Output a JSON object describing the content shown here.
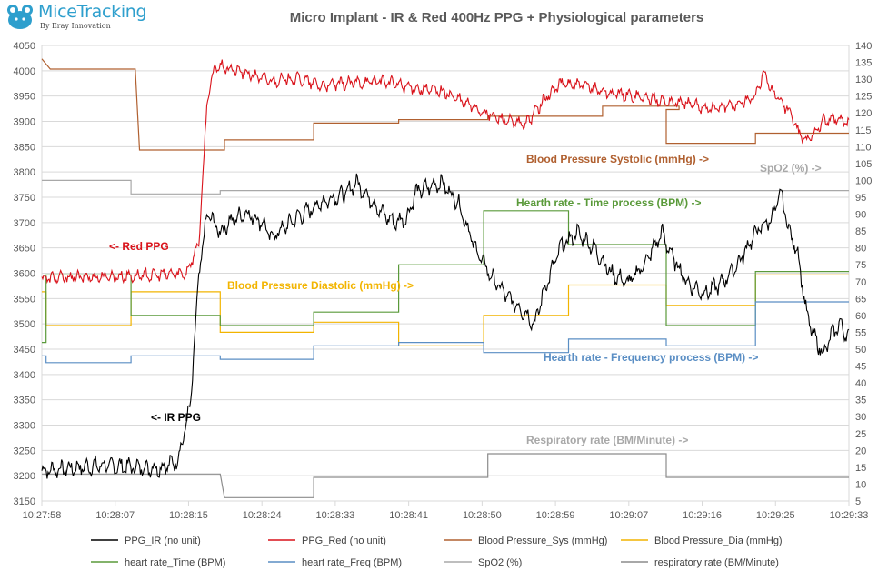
{
  "logo": {
    "name": "MiceTracking",
    "tagline": "By Eray Innovation"
  },
  "colors": {
    "ppg_ir": "#000000",
    "ppg_red": "#d9121a",
    "bp_sys": "#b06030",
    "bp_dia": "#f2b400",
    "hr_time": "#5a9a3a",
    "hr_freq": "#5a8ec4",
    "spo2": "#a8a8a8",
    "resp": "#8c8c8c",
    "grid": "#d9d9d9",
    "axis_text": "#595959"
  },
  "chart_data": {
    "type": "line",
    "title": "Micro Implant - IR & Red 400Hz PPG + Physiological parameters",
    "x_ticks": [
      "10:27:58",
      "10:28:07",
      "10:28:15",
      "10:28:24",
      "10:28:33",
      "10:28:41",
      "10:28:50",
      "10:28:59",
      "10:29:07",
      "10:29:16",
      "10:29:25",
      "10:29:33"
    ],
    "x_range_seconds": [
      0,
      95
    ],
    "y_left": {
      "range": [
        3150,
        4050
      ],
      "ticks": [
        3150,
        3200,
        3250,
        3300,
        3350,
        3400,
        3450,
        3500,
        3550,
        3600,
        3650,
        3700,
        3750,
        3800,
        3850,
        3900,
        3950,
        4000,
        4050
      ]
    },
    "y_right": {
      "range": [
        5,
        140
      ],
      "ticks": [
        5,
        10,
        15,
        20,
        25,
        30,
        35,
        40,
        45,
        50,
        55,
        60,
        65,
        70,
        75,
        80,
        85,
        90,
        95,
        100,
        105,
        110,
        115,
        120,
        125,
        130,
        135,
        140
      ]
    },
    "series": [
      {
        "name": "PPG_IR (no unit)",
        "axis": "left",
        "kind": "signal",
        "points": [
          [
            0,
            3210
          ],
          [
            7,
            3220
          ],
          [
            14,
            3215
          ],
          [
            16,
            3230
          ],
          [
            17.5,
            3340
          ],
          [
            18.5,
            3600
          ],
          [
            19.5,
            3720
          ],
          [
            21,
            3680
          ],
          [
            22,
            3700
          ],
          [
            24,
            3720
          ],
          [
            26,
            3700
          ],
          [
            27,
            3670
          ],
          [
            30,
            3710
          ],
          [
            33,
            3740
          ],
          [
            36,
            3760
          ],
          [
            37,
            3780
          ],
          [
            39,
            3740
          ],
          [
            40,
            3720
          ],
          [
            41.5,
            3700
          ],
          [
            43,
            3710
          ],
          [
            44,
            3760
          ],
          [
            47,
            3780
          ],
          [
            49,
            3740
          ],
          [
            51,
            3650
          ],
          [
            53,
            3590
          ],
          [
            55,
            3550
          ],
          [
            57,
            3520
          ],
          [
            58,
            3500
          ],
          [
            59,
            3560
          ],
          [
            61,
            3650
          ],
          [
            63,
            3680
          ],
          [
            65,
            3650
          ],
          [
            67,
            3600
          ],
          [
            69,
            3580
          ],
          [
            71,
            3620
          ],
          [
            73,
            3680
          ],
          [
            74,
            3640
          ],
          [
            76,
            3580
          ],
          [
            78,
            3560
          ],
          [
            80,
            3580
          ],
          [
            82,
            3620
          ],
          [
            84,
            3680
          ],
          [
            86,
            3710
          ],
          [
            87,
            3760
          ],
          [
            88,
            3680
          ],
          [
            89,
            3640
          ],
          [
            90,
            3520
          ],
          [
            91,
            3470
          ],
          [
            92,
            3440
          ],
          [
            93,
            3480
          ],
          [
            94,
            3500
          ],
          [
            95,
            3470
          ]
        ],
        "noise": 14
      },
      {
        "name": "PPG_Red (no unit)",
        "axis": "left",
        "kind": "signal",
        "points": [
          [
            0,
            3590
          ],
          [
            12,
            3595
          ],
          [
            17,
            3600
          ],
          [
            18.5,
            3660
          ],
          [
            19.5,
            3950
          ],
          [
            20.5,
            4010
          ],
          [
            23,
            4000
          ],
          [
            27,
            3980
          ],
          [
            30,
            3985
          ],
          [
            33,
            3970
          ],
          [
            36,
            3975
          ],
          [
            40,
            3980
          ],
          [
            44,
            3965
          ],
          [
            47,
            3960
          ],
          [
            50,
            3935
          ],
          [
            53,
            3910
          ],
          [
            56,
            3895
          ],
          [
            57,
            3895
          ],
          [
            59,
            3940
          ],
          [
            61,
            3975
          ],
          [
            64,
            3970
          ],
          [
            67,
            3955
          ],
          [
            70,
            3950
          ],
          [
            73,
            3940
          ],
          [
            76,
            3935
          ],
          [
            79,
            3925
          ],
          [
            82,
            3935
          ],
          [
            84,
            3950
          ],
          [
            85,
            3995
          ],
          [
            86,
            3960
          ],
          [
            88,
            3920
          ],
          [
            89,
            3880
          ],
          [
            90,
            3860
          ],
          [
            92,
            3900
          ],
          [
            94,
            3905
          ],
          [
            95,
            3895
          ]
        ],
        "noise": 10
      },
      {
        "name": "Blood Pressure_Sys (mmHg)",
        "axis": "right",
        "kind": "step",
        "points": [
          [
            0,
            136
          ],
          [
            1,
            133
          ],
          [
            11,
            133
          ],
          [
            11.5,
            109
          ],
          [
            21.5,
            109
          ],
          [
            21.5,
            112
          ],
          [
            32,
            112
          ],
          [
            32,
            117
          ],
          [
            42,
            117
          ],
          [
            42,
            118
          ],
          [
            52.5,
            118
          ],
          [
            52.5,
            119
          ],
          [
            60,
            119
          ],
          [
            60,
            119
          ],
          [
            66,
            119
          ],
          [
            66,
            122
          ],
          [
            75,
            122
          ],
          [
            75,
            121
          ],
          [
            73.5,
            121
          ],
          [
            73.5,
            111
          ],
          [
            84,
            111
          ],
          [
            84,
            114
          ],
          [
            95,
            114
          ]
        ]
      },
      {
        "name": "Blood Pressure_Dia (mmHg)",
        "axis": "right",
        "kind": "step",
        "points": [
          [
            0,
            67
          ],
          [
            0.5,
            67
          ],
          [
            0.5,
            57
          ],
          [
            10.5,
            57
          ],
          [
            10.5,
            67
          ],
          [
            21,
            67
          ],
          [
            21,
            55
          ],
          [
            32,
            55
          ],
          [
            32,
            58
          ],
          [
            42,
            58
          ],
          [
            42,
            51
          ],
          [
            52,
            51
          ],
          [
            52,
            60
          ],
          [
            62,
            60
          ],
          [
            62,
            69
          ],
          [
            73.5,
            69
          ],
          [
            73.5,
            63
          ],
          [
            84,
            63
          ],
          [
            84,
            72
          ],
          [
            95,
            72
          ]
        ]
      },
      {
        "name": "heart rate_Time (BPM)",
        "axis": "right",
        "kind": "step",
        "points": [
          [
            0,
            52
          ],
          [
            0.5,
            52
          ],
          [
            0.5,
            72
          ],
          [
            10.5,
            72
          ],
          [
            10.5,
            60
          ],
          [
            21,
            60
          ],
          [
            21,
            57
          ],
          [
            32,
            57
          ],
          [
            32,
            61
          ],
          [
            42,
            61
          ],
          [
            42,
            75
          ],
          [
            52,
            75
          ],
          [
            52,
            91
          ],
          [
            62,
            91
          ],
          [
            62,
            81
          ],
          [
            73.5,
            81
          ],
          [
            73.5,
            57
          ],
          [
            84,
            57
          ],
          [
            84,
            73
          ],
          [
            95,
            73
          ]
        ]
      },
      {
        "name": "heart rate_Freq (BPM)",
        "axis": "right",
        "kind": "step",
        "points": [
          [
            0,
            48
          ],
          [
            0.5,
            48
          ],
          [
            0.5,
            46
          ],
          [
            10.5,
            46
          ],
          [
            10.5,
            48
          ],
          [
            21,
            48
          ],
          [
            21,
            47
          ],
          [
            32,
            47
          ],
          [
            32,
            51
          ],
          [
            42,
            51
          ],
          [
            42,
            52
          ],
          [
            52,
            52
          ],
          [
            52,
            49
          ],
          [
            62,
            49
          ],
          [
            62,
            53
          ],
          [
            73.5,
            53
          ],
          [
            73.5,
            51
          ],
          [
            84,
            51
          ],
          [
            84,
            64
          ],
          [
            95,
            64
          ]
        ]
      },
      {
        "name": "SpO2 (%)",
        "axis": "right",
        "kind": "step",
        "points": [
          [
            0,
            100
          ],
          [
            10.5,
            100
          ],
          [
            10.5,
            96
          ],
          [
            21,
            96
          ],
          [
            21,
            97
          ],
          [
            32,
            97
          ],
          [
            32,
            97
          ],
          [
            42,
            97
          ],
          [
            42,
            97
          ],
          [
            95,
            97
          ]
        ]
      },
      {
        "name": "respiratory rate (BM/Minute)",
        "axis": "right",
        "kind": "step",
        "points": [
          [
            0,
            13
          ],
          [
            21,
            13
          ],
          [
            21.5,
            6
          ],
          [
            32,
            6
          ],
          [
            32,
            12
          ],
          [
            52.5,
            12
          ],
          [
            52.5,
            19
          ],
          [
            73.5,
            19
          ],
          [
            73.5,
            12
          ],
          [
            95,
            12
          ]
        ]
      }
    ],
    "annotations": [
      {
        "text": "<- Red PPG",
        "color_key": "ppg_red"
      },
      {
        "text": "<- IR PPG",
        "color_key": "ppg_ir"
      },
      {
        "text": "Blood Pressure Systolic (mmHg) ->",
        "color_key": "bp_sys"
      },
      {
        "text": "SpO2 (%) ->",
        "color_key": "spo2"
      },
      {
        "text": "Hearth rate - Time process (BPM) ->",
        "color_key": "hr_time"
      },
      {
        "text": "Blood Pressure Diastolic (mmHg) ->",
        "color_key": "bp_dia"
      },
      {
        "text": "Hearth rate - Frequency process (BPM) ->",
        "color_key": "hr_freq"
      },
      {
        "text": "Respiratory rate (BM/Minute) ->",
        "color_key": "resp"
      }
    ],
    "legend": [
      {
        "label": "PPG_IR (no unit)",
        "color_key": "ppg_ir"
      },
      {
        "label": "PPG_Red (no unit)",
        "color_key": "ppg_red"
      },
      {
        "label": "Blood Pressure_Sys (mmHg)",
        "color_key": "bp_sys"
      },
      {
        "label": "Blood Pressure_Dia (mmHg)",
        "color_key": "bp_dia"
      },
      {
        "label": "heart rate_Time (BPM)",
        "color_key": "hr_time"
      },
      {
        "label": "heart rate_Freq (BPM)",
        "color_key": "hr_freq"
      },
      {
        "label": "SpO2 (%)",
        "color_key": "spo2"
      },
      {
        "label": "respiratory rate (BM/Minute)",
        "color_key": "resp"
      }
    ]
  }
}
